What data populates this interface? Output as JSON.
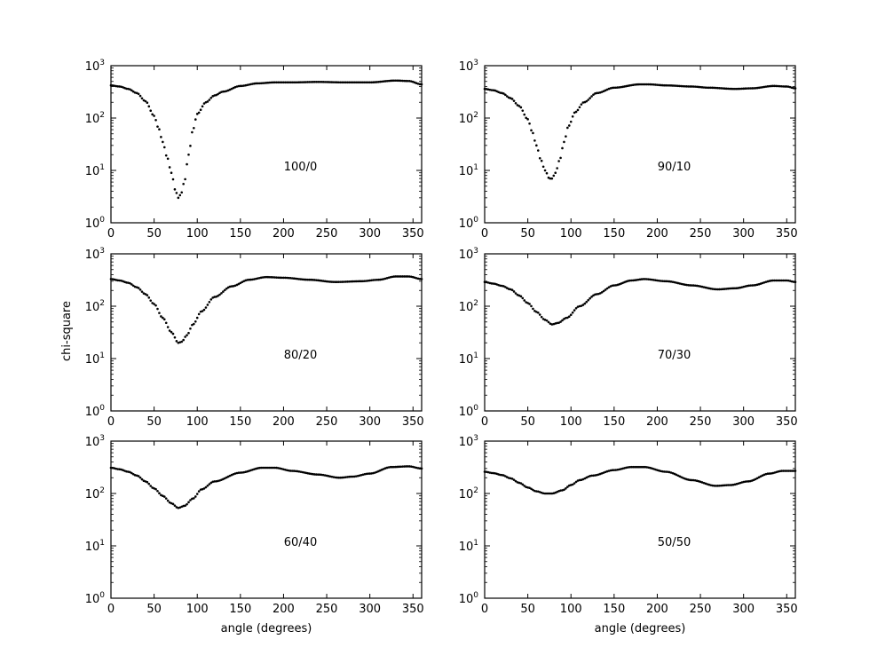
{
  "chart_data": {
    "type": "scatter",
    "layout": "3x2 grid",
    "ylabel": "chi-square",
    "xlabel": "angle (degrees)",
    "xlim": [
      0,
      360
    ],
    "ylim": [
      1,
      1000
    ],
    "yscale": "log",
    "xticks": [
      "0",
      "50",
      "100",
      "150",
      "200",
      "250",
      "300",
      "350"
    ],
    "ytick_base": "10",
    "yticks_exp": [
      "0",
      "1",
      "2",
      "3"
    ],
    "grid": false,
    "marker_color": "#000000",
    "panels": [
      {
        "annotation": "100/0",
        "points": [
          [
            0,
            420
          ],
          [
            10,
            400
          ],
          [
            20,
            360
          ],
          [
            30,
            300
          ],
          [
            40,
            210
          ],
          [
            50,
            110
          ],
          [
            55,
            65
          ],
          [
            60,
            35
          ],
          [
            65,
            18
          ],
          [
            70,
            9
          ],
          [
            75,
            4
          ],
          [
            78,
            3
          ],
          [
            81,
            3.5
          ],
          [
            85,
            6
          ],
          [
            90,
            20
          ],
          [
            95,
            60
          ],
          [
            100,
            120
          ],
          [
            110,
            200
          ],
          [
            120,
            270
          ],
          [
            130,
            320
          ],
          [
            150,
            410
          ],
          [
            170,
            460
          ],
          [
            190,
            480
          ],
          [
            210,
            480
          ],
          [
            240,
            490
          ],
          [
            270,
            480
          ],
          [
            300,
            480
          ],
          [
            330,
            520
          ],
          [
            345,
            510
          ],
          [
            360,
            440
          ]
        ]
      },
      {
        "annotation": "90/10",
        "points": [
          [
            0,
            360
          ],
          [
            10,
            340
          ],
          [
            20,
            300
          ],
          [
            30,
            240
          ],
          [
            40,
            170
          ],
          [
            50,
            95
          ],
          [
            55,
            55
          ],
          [
            60,
            30
          ],
          [
            65,
            16
          ],
          [
            70,
            10
          ],
          [
            75,
            7
          ],
          [
            78,
            7
          ],
          [
            82,
            9
          ],
          [
            87,
            16
          ],
          [
            92,
            35
          ],
          [
            97,
            70
          ],
          [
            105,
            130
          ],
          [
            115,
            200
          ],
          [
            130,
            300
          ],
          [
            150,
            380
          ],
          [
            180,
            440
          ],
          [
            190,
            440
          ],
          [
            210,
            420
          ],
          [
            240,
            400
          ],
          [
            260,
            380
          ],
          [
            290,
            360
          ],
          [
            310,
            370
          ],
          [
            335,
            410
          ],
          [
            350,
            400
          ],
          [
            360,
            370
          ]
        ]
      },
      {
        "annotation": "80/20",
        "points": [
          [
            0,
            330
          ],
          [
            10,
            310
          ],
          [
            20,
            280
          ],
          [
            30,
            230
          ],
          [
            40,
            170
          ],
          [
            50,
            110
          ],
          [
            60,
            60
          ],
          [
            70,
            32
          ],
          [
            78,
            20
          ],
          [
            82,
            21
          ],
          [
            88,
            28
          ],
          [
            95,
            45
          ],
          [
            105,
            80
          ],
          [
            120,
            150
          ],
          [
            140,
            240
          ],
          [
            160,
            320
          ],
          [
            180,
            360
          ],
          [
            200,
            350
          ],
          [
            230,
            320
          ],
          [
            260,
            290
          ],
          [
            290,
            300
          ],
          [
            310,
            320
          ],
          [
            330,
            370
          ],
          [
            345,
            370
          ],
          [
            360,
            330
          ]
        ]
      },
      {
        "annotation": "70/30",
        "points": [
          [
            0,
            290
          ],
          [
            10,
            270
          ],
          [
            20,
            245
          ],
          [
            30,
            210
          ],
          [
            40,
            160
          ],
          [
            50,
            115
          ],
          [
            60,
            78
          ],
          [
            70,
            55
          ],
          [
            78,
            45
          ],
          [
            85,
            48
          ],
          [
            95,
            60
          ],
          [
            110,
            100
          ],
          [
            130,
            170
          ],
          [
            150,
            250
          ],
          [
            170,
            310
          ],
          [
            185,
            330
          ],
          [
            210,
            300
          ],
          [
            240,
            250
          ],
          [
            270,
            210
          ],
          [
            290,
            220
          ],
          [
            310,
            250
          ],
          [
            335,
            310
          ],
          [
            350,
            310
          ],
          [
            360,
            290
          ]
        ]
      },
      {
        "annotation": "60/40",
        "points": [
          [
            0,
            310
          ],
          [
            10,
            290
          ],
          [
            20,
            260
          ],
          [
            30,
            220
          ],
          [
            40,
            170
          ],
          [
            50,
            125
          ],
          [
            60,
            90
          ],
          [
            70,
            65
          ],
          [
            78,
            53
          ],
          [
            85,
            58
          ],
          [
            95,
            80
          ],
          [
            105,
            120
          ],
          [
            120,
            170
          ],
          [
            150,
            250
          ],
          [
            175,
            310
          ],
          [
            190,
            310
          ],
          [
            210,
            270
          ],
          [
            240,
            230
          ],
          [
            265,
            200
          ],
          [
            280,
            210
          ],
          [
            300,
            240
          ],
          [
            325,
            320
          ],
          [
            345,
            330
          ],
          [
            360,
            300
          ]
        ]
      },
      {
        "annotation": "50/50",
        "points": [
          [
            0,
            260
          ],
          [
            10,
            245
          ],
          [
            20,
            225
          ],
          [
            30,
            195
          ],
          [
            40,
            160
          ],
          [
            50,
            130
          ],
          [
            60,
            110
          ],
          [
            70,
            100
          ],
          [
            78,
            100
          ],
          [
            90,
            115
          ],
          [
            100,
            145
          ],
          [
            110,
            180
          ],
          [
            125,
            220
          ],
          [
            150,
            280
          ],
          [
            170,
            320
          ],
          [
            185,
            320
          ],
          [
            210,
            260
          ],
          [
            240,
            180
          ],
          [
            268,
            140
          ],
          [
            285,
            145
          ],
          [
            305,
            170
          ],
          [
            330,
            240
          ],
          [
            345,
            270
          ],
          [
            360,
            270
          ]
        ]
      }
    ]
  }
}
